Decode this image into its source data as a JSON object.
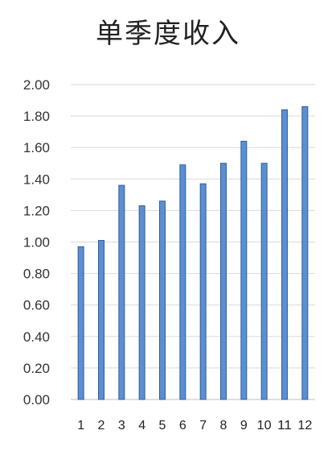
{
  "chart_data": {
    "type": "bar",
    "title": "单季度收入",
    "categories": [
      "1",
      "2",
      "3",
      "4",
      "5",
      "6",
      "7",
      "8",
      "9",
      "10",
      "11",
      "12"
    ],
    "values": [
      0.97,
      1.01,
      1.36,
      1.23,
      1.26,
      1.49,
      1.37,
      1.5,
      1.64,
      1.5,
      1.84,
      1.86
    ],
    "ylim": [
      0,
      2.0
    ],
    "yticks": [
      "0.00",
      "0.20",
      "0.40",
      "0.60",
      "0.80",
      "1.00",
      "1.20",
      "1.40",
      "1.60",
      "1.80",
      "2.00"
    ],
    "grid": true,
    "legend": "none",
    "colors": {
      "bar": "#5b8fd0",
      "bar_edge": "#2e5f9e",
      "grid": "#d9d9d9",
      "axis": "#bfbfbf"
    }
  }
}
